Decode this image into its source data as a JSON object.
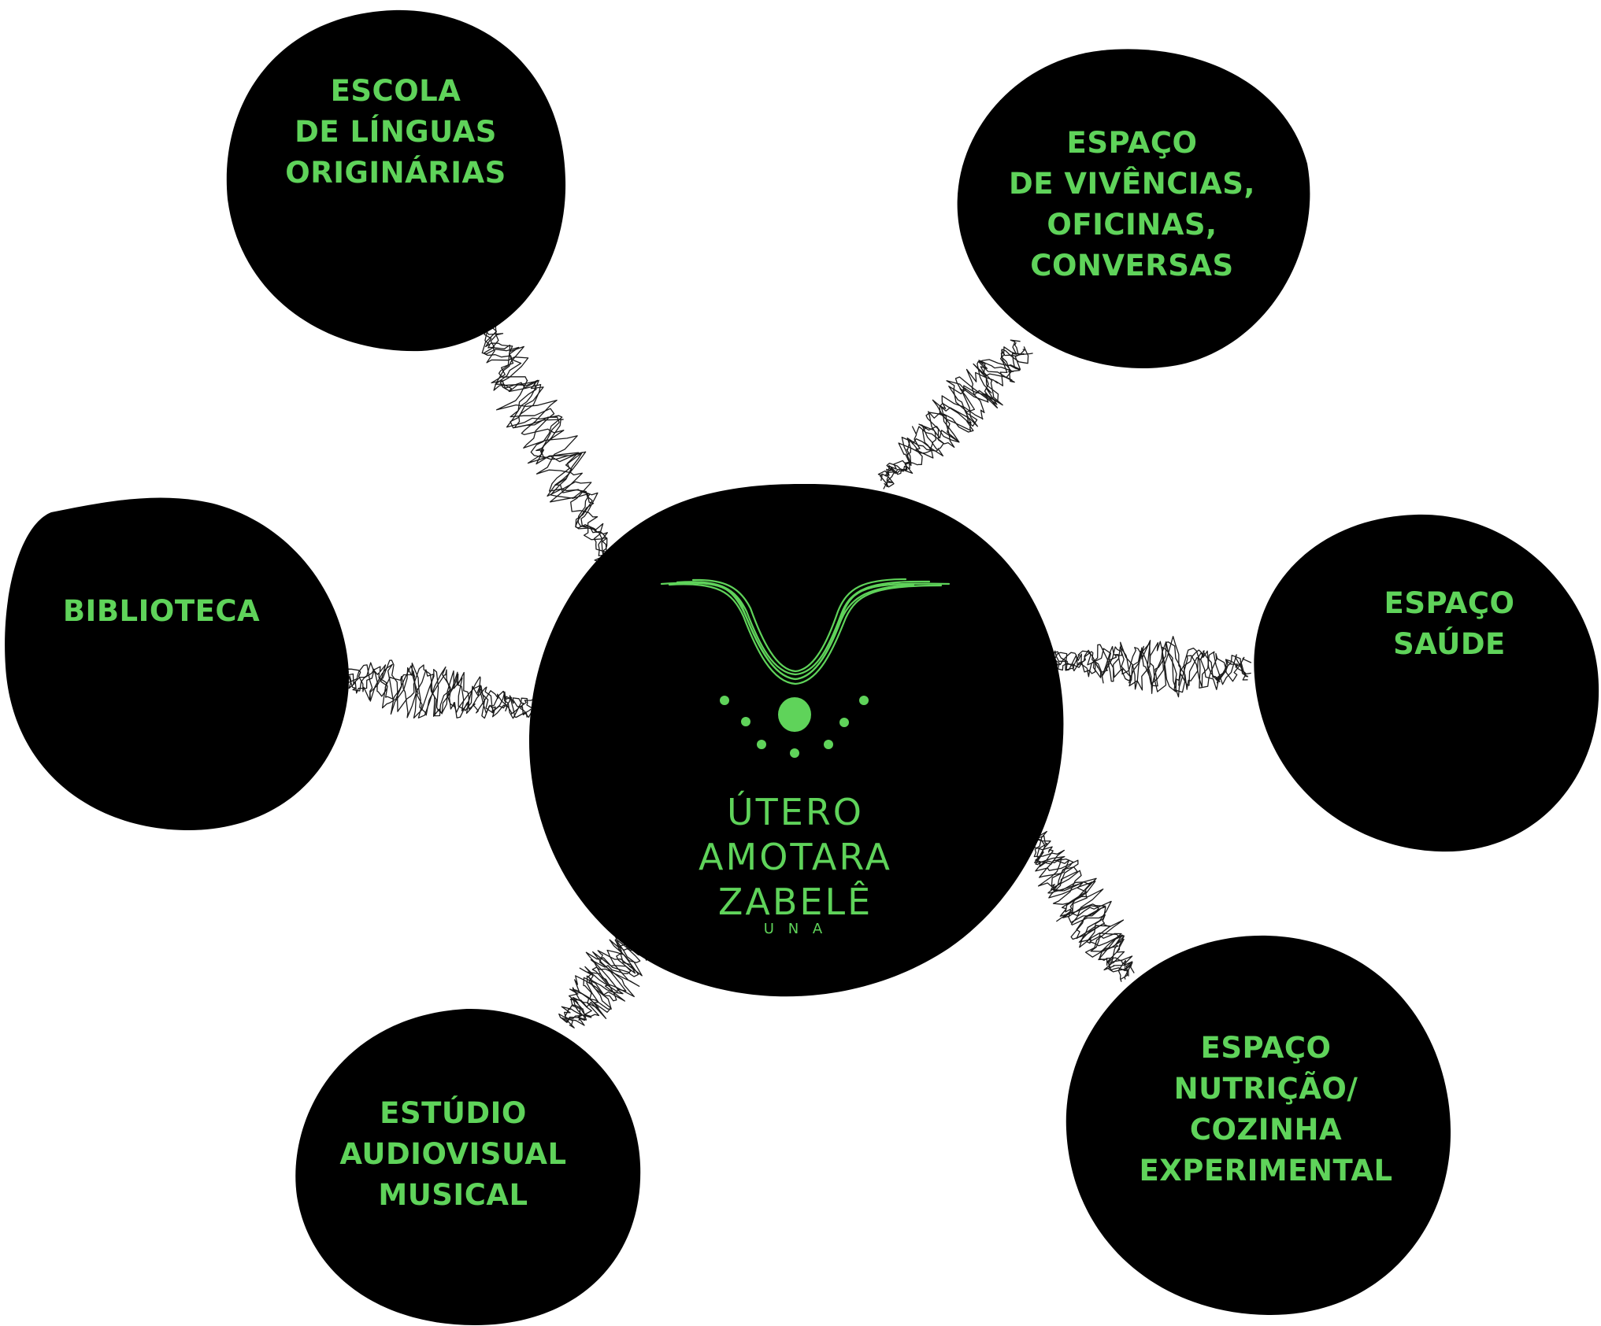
{
  "colors": {
    "node_fill": "#000000",
    "text": "#5fd35a",
    "connector": "#1a1a1a",
    "background": "#ffffff"
  },
  "center": {
    "logo": {
      "line1": "ÚTERO",
      "line2": "AMOTARA",
      "line3": "ZABELÊ",
      "sub": "U N A"
    }
  },
  "nodes": {
    "escola": {
      "label": "ESCOLA\nDE LÍNGUAS\nORIGINÁRIAS"
    },
    "vivencias": {
      "label": "ESPAÇO\nDE VIVÊNCIAS,\nOFICINAS,\nCONVERSAS"
    },
    "biblioteca": {
      "label": "BIBLIOTECA"
    },
    "saude": {
      "label": "ESPAÇO\nSAÚDE"
    },
    "estudio": {
      "label": "ESTÚDIO\nAUDIOVISUAL\nMUSICAL"
    },
    "nutricao": {
      "label": "ESPAÇO\nNUTRIÇÃO/\nCOZINHA\nEXPERIMENTAL"
    }
  }
}
